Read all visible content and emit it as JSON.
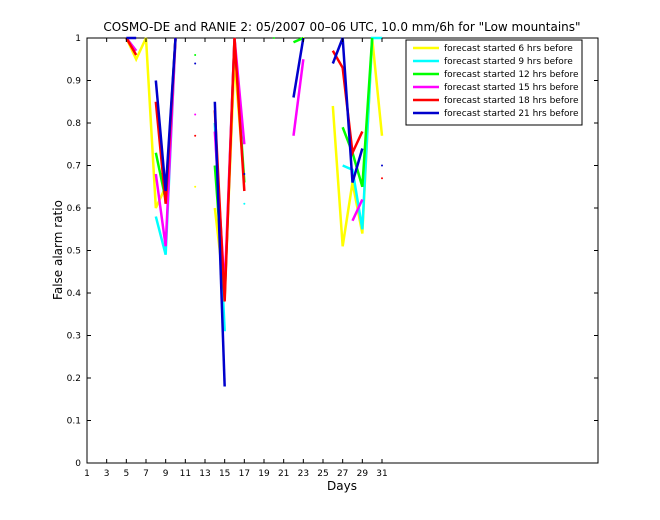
{
  "chart_data": {
    "type": "line",
    "title": "COSMO-DE and RANIE 2: 05/2007 00–06 UTC, 10.0 mm/6h for \"Low mountains\"",
    "xlabel": "Days",
    "ylabel": "False alarm ratio",
    "xlim": [
      1,
      31
    ],
    "ylim": [
      0,
      1
    ],
    "x_ticks": [
      1,
      3,
      5,
      7,
      9,
      11,
      13,
      15,
      17,
      19,
      21,
      23,
      25,
      27,
      29,
      31
    ],
    "y_ticks": [
      0,
      0.1,
      0.2,
      0.3,
      0.4,
      0.5,
      0.6,
      0.7,
      0.8,
      0.9,
      1
    ],
    "x_tick_labels": [
      "1",
      "3",
      "5",
      "7",
      "9",
      "11",
      "13",
      "15",
      "17",
      "19",
      "21",
      "23",
      "25",
      "27",
      "29",
      "31"
    ],
    "y_tick_labels": [
      "0",
      "0.1",
      "0.2",
      "0.3",
      "0.4",
      "0.5",
      "0.6",
      "0.7",
      "0.8",
      "0.9",
      "1"
    ],
    "legend_position": "top-right",
    "grid": false,
    "series": [
      {
        "name": "forecast started 6 hrs before",
        "color": "#ffff00",
        "x": [
          5,
          6,
          7,
          8,
          9,
          10,
          11,
          12,
          13,
          14,
          15,
          16,
          17,
          18,
          19,
          20,
          21,
          22,
          23,
          24,
          25,
          26,
          27,
          28,
          29,
          30,
          31
        ],
        "y": [
          1,
          0.95,
          1,
          0.6,
          0.65,
          null,
          null,
          0.65,
          null,
          0.6,
          0.4,
          0.95,
          0.66,
          null,
          null,
          null,
          null,
          null,
          1,
          null,
          null,
          0.84,
          0.51,
          0.66,
          0.54,
          1,
          0.77
        ]
      },
      {
        "name": "forecast started 9 hrs before",
        "color": "#00ffff",
        "x": [
          5,
          6,
          7,
          8,
          9,
          10,
          11,
          12,
          13,
          14,
          15,
          16,
          17,
          18,
          19,
          20,
          21,
          22,
          23,
          24,
          25,
          26,
          27,
          28,
          29,
          30,
          31
        ],
        "y": [
          1,
          0.97,
          null,
          0.58,
          0.49,
          1,
          null,
          null,
          null,
          0.8,
          0.31,
          null,
          0.61,
          null,
          null,
          null,
          null,
          null,
          null,
          null,
          null,
          null,
          0.7,
          0.69,
          0.55,
          1,
          1
        ]
      },
      {
        "name": "forecast started 12 hrs before",
        "color": "#00ff00",
        "x": [
          5,
          6,
          7,
          8,
          9,
          10,
          11,
          12,
          13,
          14,
          15,
          16,
          17,
          18,
          19,
          20,
          21,
          22,
          23,
          24,
          25,
          26,
          27,
          28,
          29,
          30,
          31
        ],
        "y": [
          null,
          null,
          null,
          0.73,
          0.62,
          1,
          null,
          0.96,
          null,
          0.7,
          0.39,
          1,
          0.66,
          null,
          null,
          1,
          null,
          0.99,
          1,
          null,
          null,
          null,
          0.79,
          0.73,
          0.65,
          1,
          null
        ]
      },
      {
        "name": "forecast started 15 hrs before",
        "color": "#ff00ff",
        "x": [
          5,
          6,
          7,
          8,
          9,
          10,
          11,
          12,
          13,
          14,
          15,
          16,
          17,
          18,
          19,
          20,
          21,
          22,
          23,
          24,
          25,
          26,
          27,
          28,
          29,
          30,
          31
        ],
        "y": [
          1,
          0.97,
          null,
          0.68,
          0.51,
          1,
          null,
          0.82,
          null,
          0.78,
          0.41,
          1,
          0.75,
          null,
          null,
          null,
          null,
          0.77,
          0.95,
          null,
          null,
          null,
          null,
          0.57,
          0.62,
          null,
          null
        ]
      },
      {
        "name": "forecast started 18 hrs before",
        "color": "#ff0000",
        "x": [
          5,
          6,
          7,
          8,
          9,
          10,
          11,
          12,
          13,
          14,
          15,
          16,
          17,
          18,
          19,
          20,
          21,
          22,
          23,
          24,
          25,
          26,
          27,
          28,
          29,
          30,
          31
        ],
        "y": [
          1,
          0.96,
          null,
          0.85,
          0.61,
          1,
          null,
          0.77,
          null,
          0.83,
          0.38,
          1,
          0.64,
          null,
          null,
          null,
          null,
          null,
          null,
          null,
          null,
          0.97,
          0.93,
          0.73,
          0.78,
          null,
          0.67
        ]
      },
      {
        "name": "forecast started 21 hrs before",
        "color": "#0000cc",
        "x": [
          5,
          6,
          7,
          8,
          9,
          10,
          11,
          12,
          13,
          14,
          15,
          16,
          17,
          18,
          19,
          20,
          21,
          22,
          23,
          24,
          25,
          26,
          27,
          28,
          29,
          30,
          31
        ],
        "y": [
          1,
          1,
          null,
          0.9,
          0.64,
          1,
          null,
          0.94,
          null,
          0.85,
          0.18,
          null,
          0.68,
          null,
          null,
          null,
          null,
          0.86,
          1,
          null,
          null,
          0.94,
          1,
          0.66,
          0.74,
          null,
          0.7
        ]
      }
    ]
  }
}
